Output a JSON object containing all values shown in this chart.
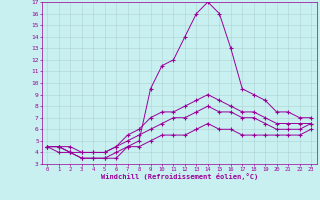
{
  "xlabel": "Windchill (Refroidissement éolien,°C)",
  "bg_color": "#c8f0f0",
  "line_color": "#990099",
  "grid_color": "#aacccc",
  "xlim": [
    -0.5,
    23.5
  ],
  "ylim": [
    3,
    17
  ],
  "xticks": [
    0,
    1,
    2,
    3,
    4,
    5,
    6,
    7,
    8,
    9,
    10,
    11,
    12,
    13,
    14,
    15,
    16,
    17,
    18,
    19,
    20,
    21,
    22,
    23
  ],
  "yticks": [
    3,
    4,
    5,
    6,
    7,
    8,
    9,
    10,
    11,
    12,
    13,
    14,
    15,
    16,
    17
  ],
  "series": [
    [
      4.5,
      4.0,
      4.0,
      3.5,
      3.5,
      3.5,
      3.5,
      4.5,
      5.0,
      9.5,
      11.5,
      12.0,
      14.0,
      16.0,
      17.0,
      16.0,
      13.0,
      9.5,
      9.0,
      8.5,
      7.5,
      7.5,
      7.0,
      7.0
    ],
    [
      4.5,
      4.5,
      4.5,
      4.0,
      4.0,
      4.0,
      4.5,
      5.5,
      6.0,
      7.0,
      7.5,
      7.5,
      8.0,
      8.5,
      9.0,
      8.5,
      8.0,
      7.5,
      7.5,
      7.0,
      6.5,
      6.5,
      6.5,
      6.5
    ],
    [
      4.5,
      4.5,
      4.0,
      4.0,
      4.0,
      4.0,
      4.5,
      5.0,
      5.5,
      6.0,
      6.5,
      7.0,
      7.0,
      7.5,
      8.0,
      7.5,
      7.5,
      7.0,
      7.0,
      6.5,
      6.0,
      6.0,
      6.0,
      6.5
    ],
    [
      4.5,
      4.5,
      4.0,
      3.5,
      3.5,
      3.5,
      4.0,
      4.5,
      4.5,
      5.0,
      5.5,
      5.5,
      5.5,
      6.0,
      6.5,
      6.0,
      6.0,
      5.5,
      5.5,
      5.5,
      5.5,
      5.5,
      5.5,
      6.0
    ]
  ]
}
